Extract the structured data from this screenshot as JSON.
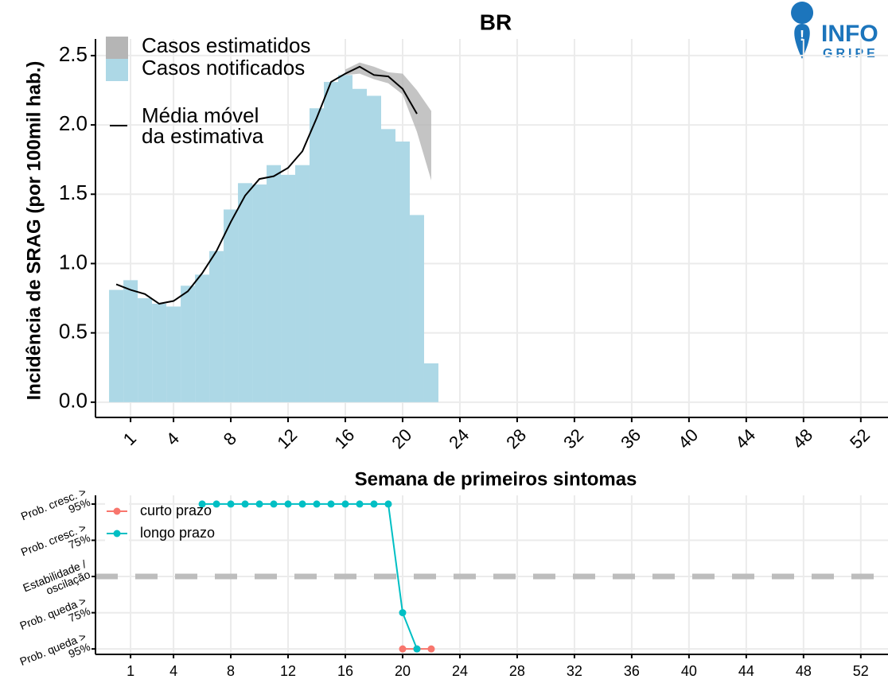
{
  "logo": {
    "line1": "INFO",
    "line2": "GRIPE"
  },
  "chart_data": [
    {
      "type": "bar",
      "title": "BR",
      "x_label": "Semana de primeiros sintomas",
      "y_label": "Incidência de SRAG (por 100mil hab.)",
      "xlim": [
        -1.45,
        53.9
      ],
      "ylim": [
        -0.11,
        2.62
      ],
      "xticks": [
        1,
        4,
        8,
        12,
        16,
        20,
        24,
        28,
        32,
        36,
        40,
        44,
        48,
        52
      ],
      "yticks": [
        {
          "value": 0,
          "label": "0.0"
        },
        0.5,
        {
          "value": 1,
          "label": "1.0"
        },
        1.5,
        {
          "value": 2,
          "label": "2.0"
        },
        2.5
      ],
      "grid": true,
      "series": [
        {
          "name": "Casos estimatidos",
          "type": "band",
          "color": "#b5b5b5",
          "x": [
            16,
            17,
            18,
            19,
            20,
            21,
            22
          ],
          "low": [
            2.36,
            2.37,
            2.33,
            2.3,
            2.22,
            1.95,
            1.6
          ],
          "high": [
            2.4,
            2.45,
            2.42,
            2.38,
            2.37,
            2.25,
            2.1
          ]
        },
        {
          "name": "Casos notificados",
          "type": "bar",
          "color": "#add8e6",
          "x": [
            0,
            1,
            2,
            3,
            4,
            5,
            6,
            7,
            8,
            9,
            10,
            11,
            12,
            13,
            14,
            15,
            16,
            17,
            18,
            19,
            20,
            21,
            22
          ],
          "values": [
            0.81,
            0.88,
            0.75,
            0.71,
            0.69,
            0.84,
            0.92,
            1.09,
            1.39,
            1.58,
            1.57,
            1.71,
            1.64,
            1.71,
            2.12,
            2.31,
            2.36,
            2.26,
            2.21,
            1.97,
            1.88,
            1.35,
            0.28
          ]
        },
        {
          "name": "Média móvel da estimativa",
          "type": "line",
          "color": "#000000",
          "x": [
            0,
            1,
            2,
            3,
            4,
            5,
            6,
            7,
            8,
            9,
            10,
            11,
            12,
            13,
            14,
            15,
            16,
            17,
            18,
            19,
            20,
            21
          ],
          "values": [
            0.85,
            0.81,
            0.78,
            0.71,
            0.73,
            0.8,
            0.93,
            1.09,
            1.3,
            1.49,
            1.61,
            1.63,
            1.69,
            1.81,
            2.05,
            2.31,
            2.37,
            2.42,
            2.36,
            2.35,
            2.26,
            2.08
          ]
        }
      ]
    },
    {
      "type": "line",
      "xlim": [
        -1.45,
        53.9
      ],
      "ylim": [
        -2.15,
        2.24
      ],
      "xticks": [
        1,
        4,
        8,
        12,
        16,
        20,
        24,
        28,
        32,
        36,
        40,
        44,
        48,
        52
      ],
      "yticks": [
        {
          "value": 2,
          "label": "Prob. cresc. > 95%"
        },
        {
          "value": 1,
          "label": "Prob. cresc. > 75%"
        },
        {
          "value": 0,
          "label": "Estabilidade / oscilação"
        },
        {
          "value": -1,
          "label": "Prob. queda > 75%"
        },
        {
          "value": -2,
          "label": "Prob. queda > 95%"
        }
      ],
      "reference_line": 0,
      "grid": true,
      "series": [
        {
          "name": "curto prazo",
          "color": "#f8766d",
          "x": [
            20,
            21,
            22
          ],
          "values": [
            -2,
            -2,
            -2
          ]
        },
        {
          "name": "longo prazo",
          "color": "#00bfc4",
          "x": [
            6,
            7,
            8,
            9,
            10,
            11,
            12,
            13,
            14,
            15,
            16,
            17,
            18,
            19,
            20,
            21
          ],
          "values": [
            2,
            2,
            2,
            2,
            2,
            2,
            2,
            2,
            2,
            2,
            2,
            2,
            2,
            2,
            -1,
            -2
          ]
        }
      ]
    }
  ]
}
